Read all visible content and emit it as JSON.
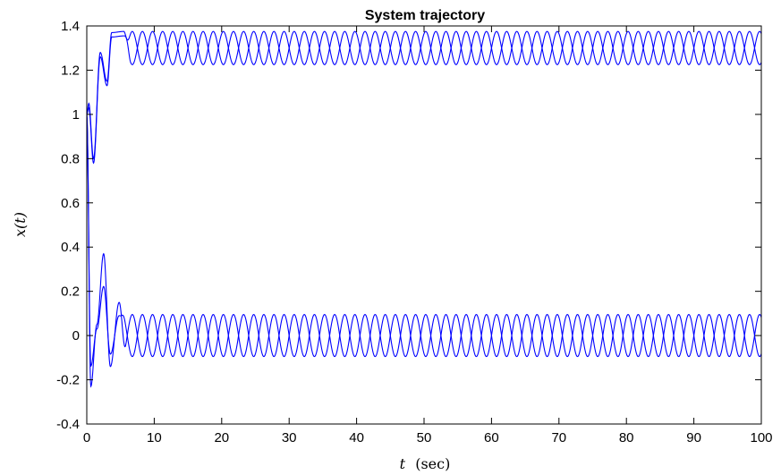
{
  "chart_data": {
    "type": "line",
    "title": "System trajectory",
    "xlabel_var": "t",
    "xlabel_unit": "(sec)",
    "ylabel": "x(t)",
    "xlim": [
      0,
      100
    ],
    "ylim": [
      -0.4,
      1.4
    ],
    "xticks": [
      "0",
      "10",
      "20",
      "30",
      "40",
      "50",
      "60",
      "70",
      "80",
      "90",
      "100"
    ],
    "yticks": [
      "-0.4",
      "-0.2",
      "0",
      "0.2",
      "0.4",
      "0.6",
      "0.8",
      "1",
      "1.2",
      "1.4"
    ],
    "grid": false,
    "line_color": "#0000ff",
    "series_model": {
      "upper_center": 1.3,
      "upper_amplitude": 0.075,
      "lower_center": 0.0,
      "lower_amplitude": 0.095,
      "oscillation_period_sec": 3.0,
      "initial_value": 1.0,
      "transient_peaks_upper": [
        [
          0.3,
          1.05
        ],
        [
          1.0,
          0.8
        ],
        [
          2.0,
          1.28
        ],
        [
          3.0,
          1.15
        ],
        [
          3.7,
          1.37
        ],
        [
          5.5,
          1.375
        ]
      ],
      "transient_peaks_lower": [
        [
          0.6,
          -0.23
        ],
        [
          1.5,
          0.05
        ],
        [
          2.5,
          0.37
        ],
        [
          3.5,
          -0.14
        ],
        [
          4.8,
          0.15
        ]
      ]
    }
  }
}
